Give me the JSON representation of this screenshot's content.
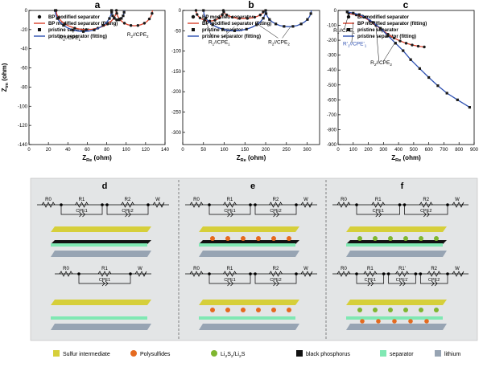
{
  "chart_data": [
    {
      "panel": "a",
      "type": "scatter",
      "xlabel_main": "Z",
      "xlabel_sub": "Re",
      "xlabel_unit": " (ohm)",
      "ylabel_main": "Z",
      "ylabel_sub": "im",
      "ylabel_unit": " (ohm)",
      "xlim": [
        0,
        140
      ],
      "ylim": [
        -140,
        0
      ],
      "xticks": [
        0,
        20,
        40,
        60,
        80,
        100,
        120,
        140
      ],
      "yticks": [
        0,
        -20,
        -40,
        -60,
        -80,
        -100,
        -120,
        -140
      ],
      "legend": [
        {
          "label": "BP  modified separator",
          "kind": "marker-circle",
          "color": "#111111"
        },
        {
          "label": "BP  modified separator (fitting)",
          "kind": "line",
          "color": "#d9402b"
        },
        {
          "label": "pristine separator",
          "kind": "marker-square",
          "color": "#111111"
        },
        {
          "label": "pristine separator  (fitting)",
          "kind": "line",
          "color": "#2c4fb0"
        }
      ],
      "annotations": [
        {
          "parts": [
            "R",
            "1",
            "//CPE",
            "1"
          ],
          "x": 42,
          "y": -30,
          "color": "#000000"
        },
        {
          "parts": [
            "R",
            "2",
            "//CPE",
            "2"
          ],
          "x": 112,
          "y": -27,
          "color": "#000000"
        }
      ],
      "series": [
        {
          "name": "BP modified separator",
          "color": "#d9402b",
          "marker": "circle",
          "arcs": [
            {
              "x0": 28,
              "x1": 90,
              "h": 20
            },
            {
              "x0": 90,
              "x1": 127,
              "h": 16
            }
          ]
        },
        {
          "name": "pristine separator",
          "color": "#2c4fb0",
          "marker": "square",
          "arcs": [
            {
              "x0": 27,
              "x1": 85,
              "h": 22
            },
            {
              "x0": 85,
              "x1": 98,
              "h": 10
            }
          ]
        }
      ]
    },
    {
      "panel": "b",
      "type": "scatter",
      "xlabel_main": "Z",
      "xlabel_sub": "Re",
      "xlabel_unit": " (ohm)",
      "xlim": [
        0,
        330
      ],
      "ylim": [
        -330,
        0
      ],
      "xticks": [
        0,
        50,
        100,
        150,
        200,
        250,
        300
      ],
      "yticks": [
        0,
        -50,
        -100,
        -150,
        -200,
        -250,
        -300
      ],
      "legend": [
        {
          "label": "BP  modified separator",
          "kind": "marker-circle",
          "color": "#111111"
        },
        {
          "label": "BP  modified separator (fitting)",
          "kind": "line",
          "color": "#d9402b"
        },
        {
          "label": "pristine separator",
          "kind": "marker-square",
          "color": "#111111"
        },
        {
          "label": "pristine separator (fitting)",
          "kind": "line",
          "color": "#2c4fb0"
        }
      ],
      "annotations": [
        {
          "parts": [
            "R",
            "1",
            "//CPE",
            "1"
          ],
          "x": 88,
          "y": -82,
          "color": "#000000"
        },
        {
          "parts": [
            "R",
            "2",
            "//CPE",
            "2"
          ],
          "x": 232,
          "y": -82,
          "color": "#000000"
        }
      ],
      "series": [
        {
          "name": "BP modified separator",
          "color": "#d9402b",
          "marker": "circle",
          "arcs": [
            {
              "x0": 32,
              "x1": 98,
              "h": 26
            },
            {
              "x0": 98,
              "x1": 195,
              "h": 20
            }
          ]
        },
        {
          "name": "pristine separator",
          "color": "#2c4fb0",
          "marker": "square",
          "arcs": [
            {
              "x0": 50,
              "x1": 200,
              "h": 50
            },
            {
              "x0": 200,
              "x1": 310,
              "h": 40
            }
          ]
        }
      ]
    },
    {
      "panel": "c",
      "type": "scatter",
      "xlabel_main": "Z",
      "xlabel_sub": "Re",
      "xlabel_unit": " (ohm)",
      "xlim": [
        0,
        900
      ],
      "ylim": [
        -900,
        0
      ],
      "xticks": [
        0,
        100,
        200,
        300,
        400,
        500,
        600,
        700,
        800,
        900
      ],
      "yticks": [
        0,
        -100,
        -200,
        -300,
        -400,
        -500,
        -600,
        -700,
        -800,
        -900
      ],
      "legend": [
        {
          "label": "BP  modified separator",
          "kind": "marker-circle",
          "color": "#111111"
        },
        {
          "label": "BP  modified separator (fitting)",
          "kind": "line",
          "color": "#d9402b"
        },
        {
          "label": "pristine separator",
          "kind": "marker-square",
          "color": "#111111"
        },
        {
          "label": "pristine separator  (fitting)",
          "kind": "line",
          "color": "#2c4fb0"
        }
      ],
      "annotations": [
        {
          "parts": [
            "R",
            "2",
            "//CPE",
            "2"
          ],
          "x": 285,
          "y": -360,
          "color": "#000000"
        },
        {
          "parts": [
            "R'",
            "1",
            "//CPE'",
            "1"
          ],
          "x": 110,
          "y": -235,
          "color": "#2c4fb0"
        },
        {
          "parts": [
            "R",
            "1",
            "//CPE",
            "1"
          ],
          "x": 40,
          "y": -145,
          "color": "#000000"
        }
      ],
      "series": [
        {
          "name": "BP modified separator",
          "color": "#d9402b",
          "marker": "circle",
          "x": [
            70,
            120,
            170,
            210,
            250,
            290,
            330,
            370,
            410,
            450,
            490,
            530,
            570
          ],
          "y": [
            -20,
            -30,
            -45,
            -70,
            -100,
            -130,
            -160,
            -185,
            -205,
            -220,
            -232,
            -240,
            -245
          ]
        },
        {
          "name": "pristine separator",
          "color": "#2c4fb0",
          "marker": "square",
          "x": [
            60,
            100,
            140,
            180,
            230,
            280,
            330,
            380,
            430,
            480,
            540,
            600,
            660,
            720,
            790,
            870
          ],
          "y": [
            -10,
            -18,
            -28,
            -45,
            -80,
            -120,
            -170,
            -220,
            -270,
            -330,
            -390,
            -450,
            -505,
            -555,
            -600,
            -650
          ]
        }
      ]
    }
  ],
  "schematic": {
    "panels": [
      {
        "label": "d",
        "top": {
          "elements": [
            "R0",
            "R1",
            "R2",
            "W"
          ],
          "cpe": [
            "CPE1",
            "CPE2"
          ]
        },
        "bottom": {
          "elements": [
            "R0",
            "R1",
            "W"
          ],
          "cpe": [
            "CPE1"
          ]
        }
      },
      {
        "label": "e",
        "top": {
          "elements": [
            "R0",
            "R1",
            "R2",
            "W"
          ],
          "cpe": [
            "CPE1",
            "CPE2"
          ]
        },
        "bottom": {
          "elements": [
            "R0",
            "R1",
            "R2",
            "W"
          ],
          "cpe": [
            "CPE1",
            "CPE2"
          ]
        }
      },
      {
        "label": "f",
        "top": {
          "elements": [
            "R0",
            "R1",
            "R2",
            "W"
          ],
          "cpe": [
            "CPE1",
            "CPE2"
          ]
        },
        "bottom": {
          "elements": [
            "R0",
            "R1",
            "R1'",
            "R2",
            "W"
          ],
          "cpe": [
            "CPE1",
            "CPE1'",
            "CPE2"
          ]
        }
      }
    ],
    "legend": [
      {
        "label": "Sulfur intermediate",
        "color": "#d6cf3a",
        "shape": "square"
      },
      {
        "label": "Polysulfides",
        "color": "#e56a1f",
        "shape": "ball"
      },
      {
        "label_parts": [
          "Li",
          "2",
          "S",
          "2",
          "/Li",
          "2",
          "S"
        ],
        "color": "#7fb630",
        "shape": "ball"
      },
      {
        "label": "black phosphorus",
        "color": "#111111",
        "shape": "square"
      },
      {
        "label": "separator",
        "color": "#80e8b3",
        "shape": "square"
      },
      {
        "label": "lithium",
        "color": "#97a4b3",
        "shape": "square"
      }
    ],
    "colors": {
      "sulfur": "#d6cf3a",
      "separator": "#80e8b3",
      "lithium": "#97a4b3",
      "bp": "#111111",
      "polysulfide": "#e56a1f",
      "li2s": "#7fb630"
    }
  }
}
